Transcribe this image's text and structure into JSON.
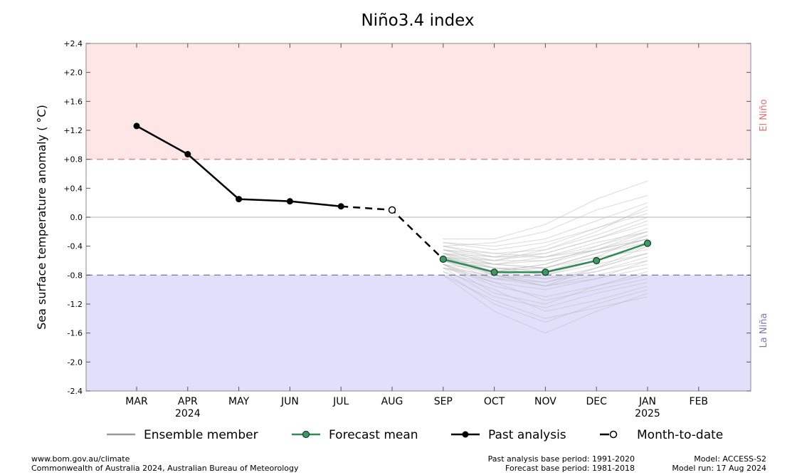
{
  "chart_data": {
    "type": "line",
    "title": "Niño3.4 index",
    "ylabel": "Sea surface temperature anomaly ($^\\circ$C)",
    "ylabel_display": "Sea surface temperature anomaly ( °C)",
    "ylim": [
      -2.4,
      2.4
    ],
    "yticks": [
      2.4,
      2.0,
      1.6,
      1.2,
      0.8,
      0.4,
      0.0,
      -0.4,
      -0.8,
      -1.2,
      -1.6,
      -2.0,
      -2.4
    ],
    "ytick_labels": [
      "+2.4",
      "+2.0",
      "+1.6",
      "+1.2",
      "+0.8",
      "+0.4",
      "0.0",
      "-0.4",
      "-0.8",
      "-1.2",
      "-1.6",
      "-2.0",
      "-2.4"
    ],
    "categories": [
      "MAR",
      "APR",
      "MAY",
      "JUN",
      "JUL",
      "AUG",
      "SEP",
      "OCT",
      "NOV",
      "DEC",
      "JAN",
      "FEB"
    ],
    "year_labels": [
      {
        "category": "APR",
        "text": "2024"
      },
      {
        "category": "JAN",
        "text": "2025"
      }
    ],
    "thresholds": {
      "el_nino": 0.8,
      "la_nina": -0.8
    },
    "region_labels": {
      "el_nino": "El Niño",
      "la_nina": "La Niña"
    },
    "colors": {
      "el_nino_fill": "#ffe6e6",
      "la_nina_fill": "#e0e0fb",
      "el_nino_line": "#f08080",
      "la_nina_line": "#8080b0",
      "el_nino_text": "#e06f6f",
      "la_nina_text": "#7a7ab8",
      "forecast_line": "#2e8b57",
      "forecast_marker": "#3a9a60",
      "ensemble": "#bbbbbb",
      "past": "#000000",
      "zero_line": "#cccccc"
    },
    "past_analysis": {
      "name": "Past analysis",
      "x": [
        "MAR",
        "APR",
        "MAY",
        "JUN",
        "JUL"
      ],
      "values": [
        1.26,
        0.87,
        0.25,
        0.22,
        0.15
      ]
    },
    "month_to_date": {
      "name": "Month-to-date",
      "x": "AUG",
      "value": 0.1
    },
    "forecast_mean": {
      "name": "Forecast mean",
      "x": [
        "SEP",
        "OCT",
        "NOV",
        "DEC",
        "JAN"
      ],
      "values": [
        -0.58,
        -0.76,
        -0.76,
        -0.6,
        -0.36
      ]
    },
    "ensemble": {
      "name": "Ensemble member",
      "x": [
        "SEP",
        "OCT",
        "NOV",
        "DEC",
        "JAN"
      ],
      "members": [
        [
          -0.35,
          -0.45,
          -0.35,
          -0.15,
          0.05
        ],
        [
          -0.4,
          -0.55,
          -0.5,
          -0.3,
          -0.1
        ],
        [
          -0.45,
          -0.6,
          -0.6,
          -0.45,
          -0.25
        ],
        [
          -0.5,
          -0.7,
          -0.75,
          -0.6,
          -0.4
        ],
        [
          -0.55,
          -0.75,
          -0.85,
          -0.7,
          -0.5
        ],
        [
          -0.6,
          -0.8,
          -0.95,
          -0.8,
          -0.65
        ],
        [
          -0.65,
          -0.95,
          -1.1,
          -0.95,
          -0.8
        ],
        [
          -0.7,
          -1.1,
          -1.25,
          -1.05,
          -0.9
        ],
        [
          -0.75,
          -1.2,
          -1.45,
          -1.2,
          -1.0
        ],
        [
          -0.8,
          -1.3,
          -1.6,
          -1.3,
          -1.05
        ],
        [
          -0.55,
          -0.65,
          -0.55,
          -0.35,
          -0.2
        ],
        [
          -0.6,
          -0.7,
          -0.7,
          -0.5,
          -0.3
        ],
        [
          -0.45,
          -0.5,
          -0.45,
          -0.25,
          0.0
        ],
        [
          -0.5,
          -0.8,
          -0.9,
          -0.75,
          -0.55
        ],
        [
          -0.65,
          -0.85,
          -0.8,
          -0.6,
          -0.35
        ],
        [
          -0.7,
          -0.9,
          -1.0,
          -0.85,
          -0.7
        ],
        [
          -0.4,
          -0.35,
          -0.2,
          0.1,
          0.3
        ],
        [
          -0.3,
          -0.3,
          -0.1,
          0.25,
          0.5
        ],
        [
          -0.55,
          -0.6,
          -0.45,
          -0.2,
          0.15
        ],
        [
          -0.6,
          -0.75,
          -0.65,
          -0.4,
          -0.15
        ],
        [
          -0.5,
          -0.65,
          -0.7,
          -0.55,
          -0.45
        ],
        [
          -0.65,
          -0.9,
          -1.15,
          -1.0,
          -0.85
        ],
        [
          -0.75,
          -1.0,
          -1.3,
          -1.15,
          -0.95
        ],
        [
          -0.45,
          -0.55,
          -0.55,
          -0.4,
          -0.2
        ],
        [
          -0.55,
          -0.7,
          -0.8,
          -0.65,
          -0.5
        ],
        [
          -0.6,
          -0.65,
          -0.6,
          -0.45,
          -0.3
        ],
        [
          -0.7,
          -0.85,
          -0.9,
          -0.7,
          -0.5
        ],
        [
          -0.5,
          -0.6,
          -0.5,
          -0.3,
          -0.05
        ],
        [
          -0.35,
          -0.4,
          -0.3,
          -0.05,
          0.2
        ],
        [
          -0.65,
          -1.05,
          -1.2,
          -0.95,
          -0.75
        ],
        [
          -0.55,
          -0.8,
          -0.95,
          -0.85,
          -0.6
        ],
        [
          -0.6,
          -0.7,
          -0.75,
          -0.55,
          -0.25
        ],
        [
          -0.45,
          -0.65,
          -0.7,
          -0.5,
          -0.35
        ],
        [
          -0.7,
          -0.8,
          -0.85,
          -0.75,
          -0.6
        ],
        [
          -0.5,
          -0.55,
          -0.4,
          -0.15,
          0.1
        ],
        [
          -0.4,
          -0.5,
          -0.55,
          -0.45,
          -0.3
        ],
        [
          -0.8,
          -1.15,
          -1.4,
          -1.25,
          -1.1
        ],
        [
          -0.55,
          -0.75,
          -0.7,
          -0.5,
          -0.3
        ],
        [
          -0.6,
          -0.85,
          -0.95,
          -0.7,
          -0.4
        ],
        [
          -0.65,
          -0.75,
          -0.65,
          -0.45,
          -0.2
        ]
      ]
    },
    "legend": [
      "Ensemble member",
      "Forecast mean",
      "Past analysis",
      "Month-to-date"
    ],
    "legend_position": "bottom"
  },
  "footer": {
    "left_line1": "www.bom.gov.au/climate",
    "left_line2": "Commonwealth of Australia 2024, Australian Bureau of Meteorology",
    "mid_line1": "Past analysis base period: 1991-2020",
    "mid_line2": "Forecast base period: 1981-2018",
    "right_line1": "Model: ACCESS-S2",
    "right_line2": "Model run: 17 Aug 2024"
  }
}
